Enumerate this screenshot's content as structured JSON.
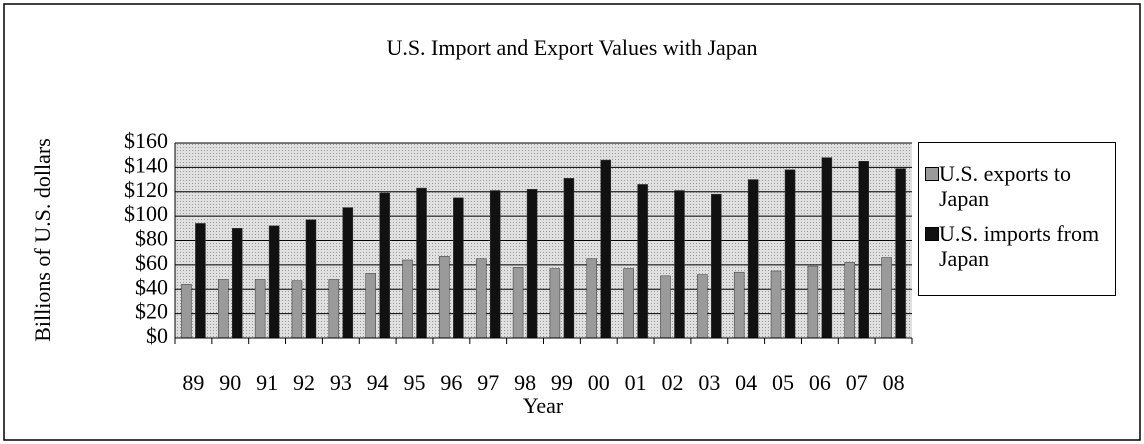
{
  "chart_data": {
    "type": "bar",
    "title": "U.S. Import and Export Values with Japan",
    "x_label": "Year",
    "y_label": "Billions of U.S. dollars",
    "categories": [
      "89",
      "90",
      "91",
      "92",
      "93",
      "94",
      "95",
      "96",
      "97",
      "98",
      "99",
      "00",
      "01",
      "02",
      "03",
      "04",
      "05",
      "06",
      "07",
      "08"
    ],
    "series": [
      {
        "name": "U.S. exports to Japan",
        "color": "#9a9a9a",
        "values": [
          44,
          48,
          48,
          47,
          48,
          53,
          64,
          67,
          65,
          58,
          57,
          65,
          57,
          51,
          52,
          54,
          55,
          59,
          62,
          66
        ]
      },
      {
        "name": "U.S. imports from Japan",
        "color": "#111111",
        "values": [
          94,
          90,
          92,
          97,
          107,
          119,
          123,
          115,
          121,
          122,
          131,
          146,
          126,
          121,
          118,
          130,
          138,
          148,
          145,
          139
        ]
      }
    ],
    "ylim": [
      0,
      160
    ],
    "yticks": [
      {
        "value": 0,
        "label": "$0"
      },
      {
        "value": 20,
        "label": "$20"
      },
      {
        "value": 40,
        "label": "$40"
      },
      {
        "value": 60,
        "label": "$60"
      },
      {
        "value": 80,
        "label": "$80"
      },
      {
        "value": 100,
        "label": "$100"
      },
      {
        "value": 120,
        "label": "$120"
      },
      {
        "value": 140,
        "label": "$140"
      },
      {
        "value": 160,
        "label": "$160"
      }
    ],
    "grid": true,
    "legend": "right"
  }
}
